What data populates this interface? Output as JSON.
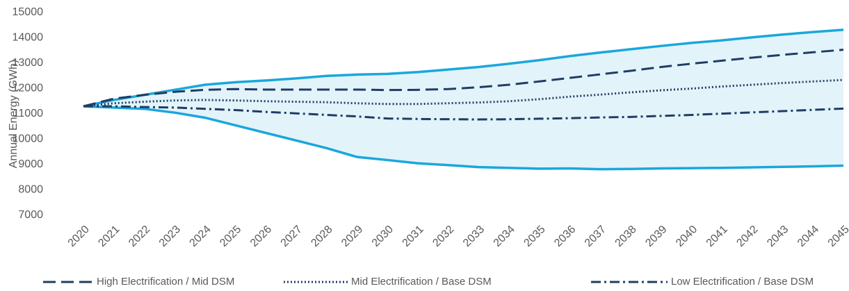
{
  "chart_data": {
    "type": "line",
    "y_label": "Annual Energy (GWh)",
    "categories": [
      "2020",
      "2021",
      "2022",
      "2023",
      "2024",
      "2025",
      "2026",
      "2027",
      "2028",
      "2029",
      "2030",
      "2031",
      "2032",
      "2033",
      "2034",
      "2035",
      "2036",
      "2037",
      "2038",
      "2039",
      "2040",
      "2041",
      "2042",
      "2043",
      "2044",
      "2045"
    ],
    "ylim": [
      7000,
      15000
    ],
    "yticks": [
      7000,
      8000,
      9000,
      10000,
      11000,
      12000,
      13000,
      14000,
      15000
    ],
    "grid": false,
    "legend": "bottom",
    "band": {
      "color": "#1aa7dc",
      "fill": "#e3f3fa",
      "upper": [
        11300,
        11550,
        11750,
        11950,
        12150,
        12250,
        12320,
        12400,
        12500,
        12550,
        12580,
        12650,
        12750,
        12850,
        12980,
        13120,
        13280,
        13420,
        13550,
        13680,
        13800,
        13900,
        14020,
        14130,
        14230,
        14320
      ],
      "lower": [
        11300,
        11250,
        11200,
        11050,
        10850,
        10550,
        10250,
        9950,
        9650,
        9300,
        9180,
        9050,
        8980,
        8900,
        8870,
        8840,
        8850,
        8820,
        8830,
        8850,
        8860,
        8870,
        8890,
        8910,
        8930,
        8960
      ]
    },
    "series": [
      {
        "name": "High Electrification / Mid DSM",
        "color": "#1f3d63",
        "dash": "18,8",
        "values": [
          11300,
          11600,
          11750,
          11870,
          11950,
          11980,
          11960,
          11960,
          11960,
          11960,
          11940,
          11950,
          11980,
          12050,
          12150,
          12280,
          12420,
          12560,
          12700,
          12850,
          12980,
          13100,
          13220,
          13330,
          13430,
          13530
        ]
      },
      {
        "name": "Mid Electrification / Base DSM",
        "color": "#1f3d63",
        "dash": "2,3",
        "values": [
          11300,
          11420,
          11480,
          11530,
          11550,
          11530,
          11500,
          11480,
          11460,
          11420,
          11390,
          11390,
          11420,
          11450,
          11500,
          11580,
          11680,
          11760,
          11850,
          11930,
          12000,
          12080,
          12150,
          12220,
          12280,
          12340
        ]
      },
      {
        "name": "Low Electrification / Base DSM",
        "color": "#1f3d63",
        "dash": "14,5,3,5",
        "values": [
          11300,
          11300,
          11270,
          11250,
          11200,
          11150,
          11080,
          11020,
          10960,
          10900,
          10820,
          10800,
          10790,
          10780,
          10790,
          10810,
          10830,
          10860,
          10880,
          10920,
          10960,
          11010,
          11060,
          11110,
          11160,
          11210
        ]
      }
    ]
  }
}
